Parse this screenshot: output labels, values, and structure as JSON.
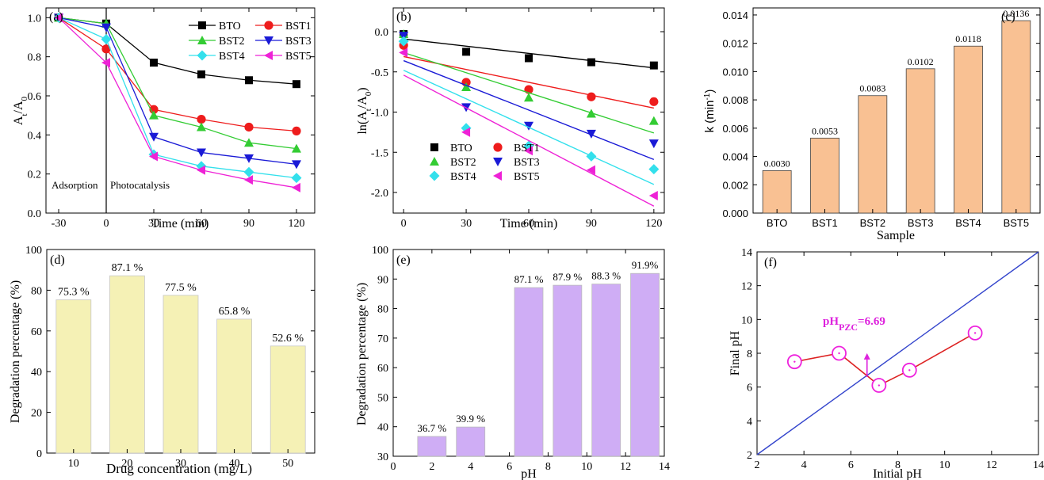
{
  "chart_data": [
    {
      "panel": "(a)",
      "type": "line",
      "xlabel": "Time (min)",
      "ylabel": "A_t/A_0",
      "xlim": [
        -30,
        120
      ],
      "ylim": [
        0.0,
        1.05
      ],
      "xticks": [
        -30,
        0,
        30,
        60,
        90,
        120
      ],
      "yticks": [
        0.0,
        0.2,
        0.4,
        0.6,
        0.8,
        1.0
      ],
      "x": [
        -30,
        0,
        30,
        60,
        90,
        120
      ],
      "annotations": [
        "Adsorption",
        "Photocatalysis"
      ],
      "legend_position": "top-right",
      "series": [
        {
          "name": "BTO",
          "color": "#000000",
          "marker": "square",
          "values": [
            1.0,
            0.97,
            0.77,
            0.71,
            0.68,
            0.66
          ]
        },
        {
          "name": "BST1",
          "color": "#ee1c1c",
          "marker": "circle",
          "values": [
            1.0,
            0.84,
            0.53,
            0.48,
            0.44,
            0.42
          ]
        },
        {
          "name": "BST2",
          "color": "#33cc33",
          "marker": "triangle-up",
          "values": [
            1.0,
            0.97,
            0.5,
            0.44,
            0.36,
            0.33
          ]
        },
        {
          "name": "BST3",
          "color": "#1a1ad6",
          "marker": "triangle-down",
          "values": [
            1.0,
            0.95,
            0.39,
            0.31,
            0.28,
            0.25
          ]
        },
        {
          "name": "BST4",
          "color": "#33e0ec",
          "marker": "diamond",
          "values": [
            1.0,
            0.89,
            0.3,
            0.24,
            0.21,
            0.18
          ]
        },
        {
          "name": "BST5",
          "color": "#ee22d6",
          "marker": "triangle-left",
          "values": [
            1.0,
            0.77,
            0.29,
            0.22,
            0.17,
            0.13
          ]
        }
      ]
    },
    {
      "panel": "(b)",
      "type": "scatter",
      "xlabel": "Time (min)",
      "ylabel": "ln(A_t/A_0)",
      "xlim": [
        -5,
        125
      ],
      "ylim": [
        -2.25,
        0.08
      ],
      "xticks": [
        0,
        30,
        60,
        90,
        120
      ],
      "yticks": [
        0.0,
        -0.5,
        -1.0,
        -1.5,
        -2.0
      ],
      "x": [
        0,
        30,
        60,
        90,
        120
      ],
      "legend_position": "bottom-center",
      "series": [
        {
          "name": "BTO",
          "color": "#000000",
          "marker": "square",
          "values": [
            -0.03,
            -0.25,
            -0.33,
            -0.38,
            -0.42
          ],
          "fit": [
            -0.09,
            -0.45
          ]
        },
        {
          "name": "BST1",
          "color": "#ee1c1c",
          "marker": "circle",
          "values": [
            -0.17,
            -0.63,
            -0.72,
            -0.81,
            -0.87
          ],
          "fit": [
            -0.31,
            -0.95
          ]
        },
        {
          "name": "BST2",
          "color": "#33cc33",
          "marker": "triangle-up",
          "values": [
            -0.03,
            -0.69,
            -0.82,
            -1.02,
            -1.11
          ],
          "fit": [
            -0.26,
            -1.26
          ]
        },
        {
          "name": "BST3",
          "color": "#1a1ad6",
          "marker": "triangle-down",
          "values": [
            -0.05,
            -0.94,
            -1.17,
            -1.27,
            -1.39
          ],
          "fit": [
            -0.36,
            -1.59
          ]
        },
        {
          "name": "BST4",
          "color": "#33e0ec",
          "marker": "diamond",
          "values": [
            -0.12,
            -1.2,
            -1.42,
            -1.55,
            -1.71
          ],
          "fit": [
            -0.48,
            -1.9
          ]
        },
        {
          "name": "BST5",
          "color": "#ee22d6",
          "marker": "triangle-left",
          "values": [
            -0.26,
            -1.25,
            -1.48,
            -1.72,
            -2.04
          ],
          "fit": [
            -0.54,
            -2.17
          ]
        }
      ]
    },
    {
      "panel": "(c)",
      "type": "bar",
      "xlabel": "Sample",
      "ylabel": "k (min⁻¹)",
      "ylim": [
        0,
        0.0145
      ],
      "yticks": [
        "0.000",
        "0.002",
        "0.004",
        "0.006",
        "0.008",
        "0.010",
        "0.012",
        "0.014"
      ],
      "categories": [
        "BTO",
        "BST1",
        "BST2",
        "BST3",
        "BST4",
        "BST5"
      ],
      "values": [
        0.003,
        0.0053,
        0.0083,
        0.0102,
        0.0118,
        0.0136
      ],
      "data_labels": [
        "0.0030",
        "0.0053",
        "0.0083",
        "0.0102",
        "0.0118",
        "0.0136"
      ],
      "color": "#f9c193"
    },
    {
      "panel": "(d)",
      "type": "bar",
      "xlabel": "Drug concentration (mg/L)",
      "ylabel": "Degradation percentage (%)",
      "ylim": [
        0,
        100
      ],
      "yticks": [
        0,
        20,
        40,
        60,
        80,
        100
      ],
      "categories": [
        "10",
        "20",
        "30",
        "40",
        "50"
      ],
      "values": [
        75.3,
        87.1,
        77.5,
        65.8,
        52.6
      ],
      "data_labels": [
        "75.3 %",
        "87.1 %",
        "77.5 %",
        "65.8 %",
        "52.6 %"
      ],
      "color": "#f5f1b5"
    },
    {
      "panel": "(e)",
      "type": "bar",
      "xlabel": "pH",
      "ylabel": "Degradation percentage (%)",
      "xlim": [
        0,
        14
      ],
      "ylim": [
        30,
        100
      ],
      "xticks": [
        0,
        2,
        4,
        6,
        8,
        10,
        12,
        14
      ],
      "yticks": [
        30,
        40,
        50,
        60,
        70,
        80,
        90,
        100
      ],
      "x": [
        2,
        4,
        7,
        9,
        11,
        13
      ],
      "values": [
        36.7,
        39.9,
        87.1,
        87.9,
        88.3,
        91.9
      ],
      "data_labels": [
        "36.7 %",
        "39.9 %",
        "87.1 %",
        "87.9 %",
        "88.3 %",
        "91.9%"
      ],
      "color": "#cfadf5"
    },
    {
      "panel": "(f)",
      "type": "line",
      "xlabel": "Initial pH",
      "ylabel": "Final pH",
      "xlim": [
        2,
        14
      ],
      "ylim": [
        2,
        14
      ],
      "xticks": [
        2,
        4,
        6,
        8,
        10,
        12,
        14
      ],
      "yticks": [
        2,
        4,
        6,
        8,
        10,
        12,
        14
      ],
      "series": [
        {
          "color": "#dd2222",
          "marker": "open-circle",
          "x": [
            3.6,
            5.5,
            7.2,
            8.5,
            11.3
          ],
          "values": [
            7.5,
            8.0,
            6.1,
            7.0,
            9.2
          ]
        },
        {
          "color": "#3344cc",
          "marker": "none",
          "x": [
            2,
            14
          ],
          "values": [
            2,
            14
          ]
        }
      ],
      "annotation": {
        "prefix": "pH",
        "subscript": "PZC",
        "suffix": "=6.69",
        "x": 6.69,
        "color": "#dd22dd"
      }
    }
  ]
}
